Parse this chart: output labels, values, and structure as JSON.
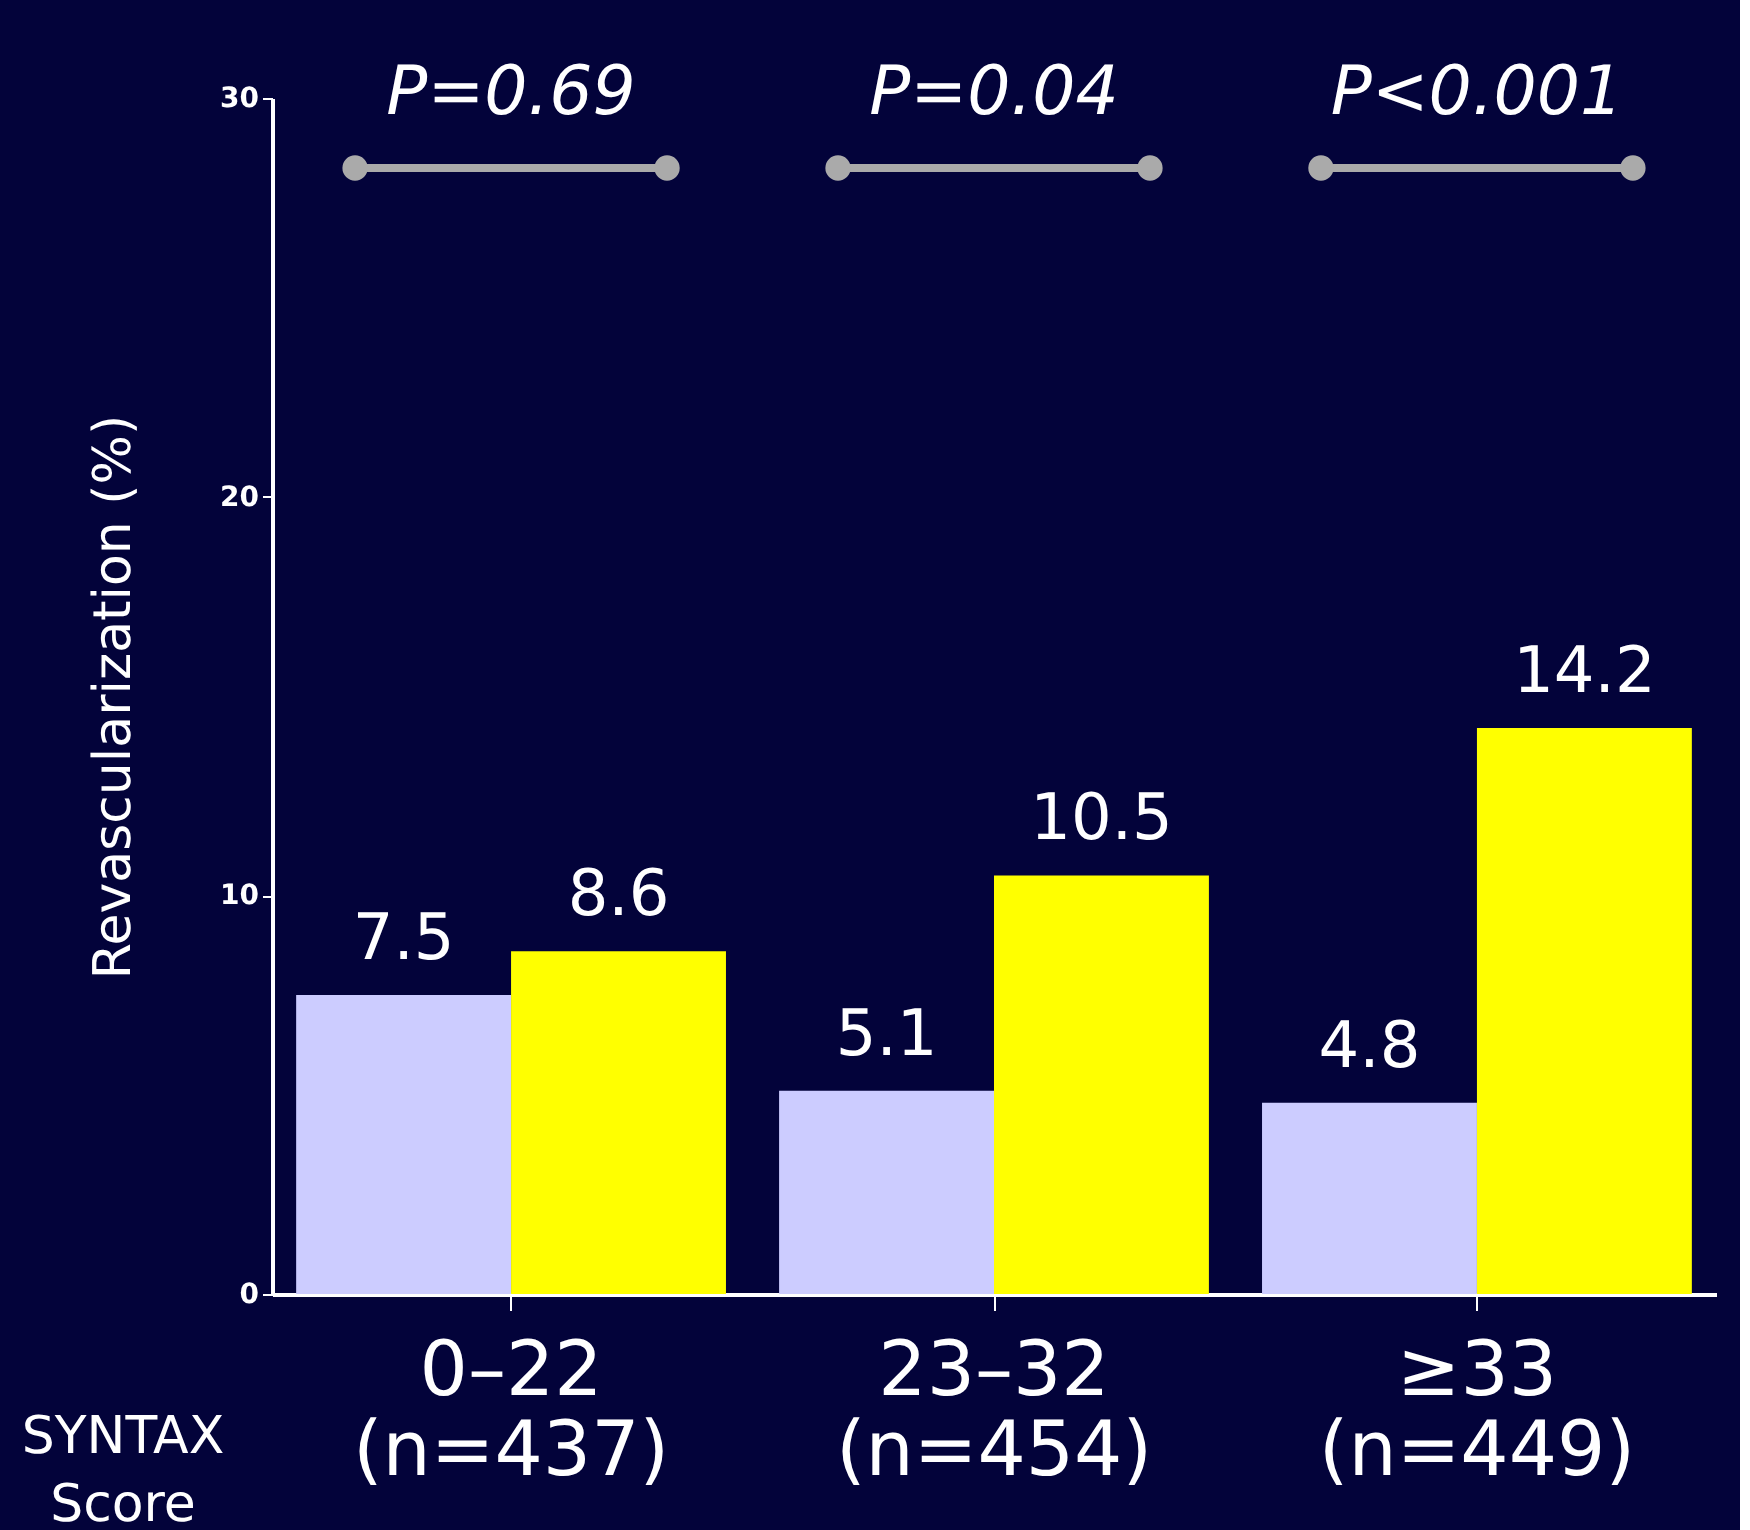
{
  "chart_data": {
    "type": "bar",
    "categories": [
      "0–22 (n=437)",
      "23–32 (n=454)",
      "≥33 (n=449)"
    ],
    "series": [
      {
        "color": "#ccccff",
        "values": [
          7.5,
          5.1,
          4.8
        ]
      },
      {
        "color": "#ffff00",
        "values": [
          8.6,
          10.5,
          14.2
        ]
      }
    ],
    "xlabel": "SYNTAX Score",
    "ylabel": "Revascularization (%)",
    "ylim": [
      0,
      30
    ],
    "yticks": [
      0,
      10,
      20,
      30
    ],
    "grid": false,
    "legend": false,
    "data_labels": true,
    "annotations": [
      "P=0.69",
      "P=0.04",
      "P<0.001"
    ]
  }
}
